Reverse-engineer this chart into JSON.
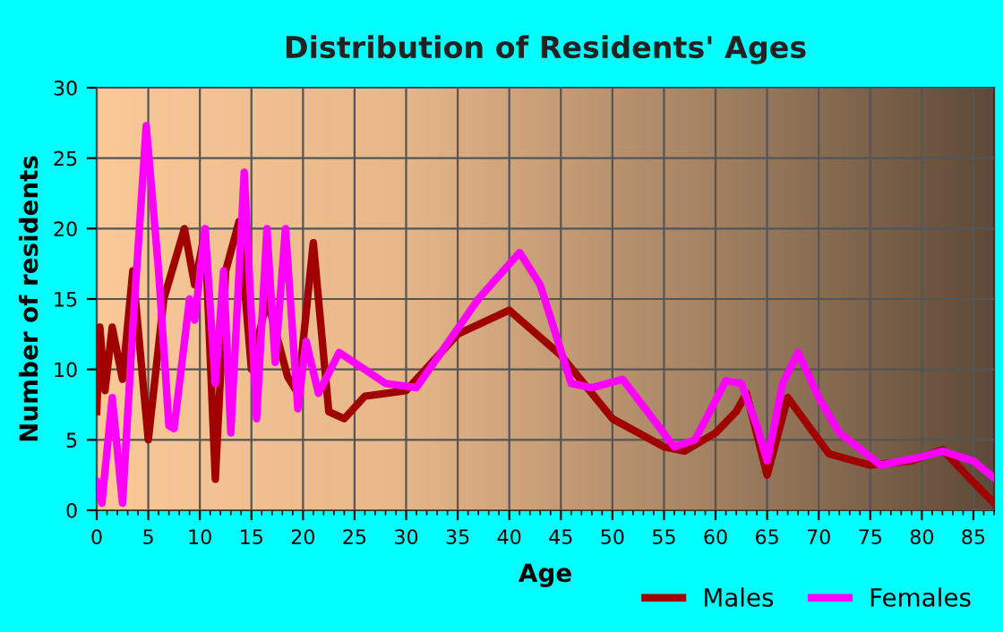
{
  "chart_data": {
    "type": "line",
    "title": "Distribution of Residents' Ages",
    "xlabel": "Age",
    "ylabel": "Number of residents",
    "xlim": [
      0,
      87
    ],
    "xticks": [
      0,
      5,
      10,
      15,
      20,
      25,
      30,
      35,
      40,
      45,
      50,
      55,
      60,
      65,
      70,
      75,
      80,
      85
    ],
    "ylim": [
      0,
      30
    ],
    "yticks": [
      0,
      5,
      10,
      15,
      20,
      25,
      30
    ],
    "grid": true,
    "legend": "bottom right",
    "line_style": "solid",
    "marker": "none",
    "series": [
      {
        "name": "Males",
        "color": "#a00000",
        "x": [
          0,
          0.3,
          0.8,
          1.5,
          2.5,
          3.5,
          5,
          6.5,
          8.5,
          9.5,
          10.5,
          11.5,
          12.5,
          13.8,
          15,
          16.5,
          18.5,
          19.5,
          21,
          22.5,
          24,
          26,
          30,
          35,
          40,
          45,
          50,
          55,
          57,
          60,
          62,
          63,
          65,
          67,
          69,
          71,
          75,
          79,
          82,
          85,
          87
        ],
        "values": [
          7,
          13,
          8.5,
          13,
          9.3,
          17,
          5,
          15,
          20,
          16,
          19.8,
          2.2,
          17,
          20.5,
          10,
          15,
          9.5,
          8.3,
          19,
          7,
          6.5,
          8.1,
          8.5,
          12.5,
          14.2,
          11,
          6.5,
          4.5,
          4.2,
          5.5,
          7,
          8.3,
          2.5,
          8,
          6,
          4,
          3.2,
          3.5,
          4.3,
          2,
          0.5
        ]
      },
      {
        "name": "Females",
        "color": "#ff00ff",
        "x": [
          0,
          0.5,
          1.5,
          2.5,
          3.5,
          4.8,
          6,
          7,
          7.5,
          9,
          9.5,
          10.5,
          11.5,
          12.3,
          13,
          14.3,
          15.5,
          16.5,
          17.3,
          18.3,
          19.5,
          20.3,
          21.5,
          23.5,
          26,
          28,
          31,
          37,
          41,
          43,
          46,
          48,
          51,
          56,
          58,
          61,
          62.5,
          64,
          65,
          66.5,
          68,
          70,
          72,
          76,
          80,
          82,
          85,
          87
        ],
        "values": [
          2,
          0.5,
          8,
          0.5,
          13,
          27.3,
          17,
          6,
          5.8,
          15,
          13.5,
          20,
          9,
          17,
          5.5,
          24,
          6.5,
          20,
          10.5,
          20,
          7.2,
          12,
          8.3,
          11.2,
          10,
          9,
          8.7,
          15,
          18.3,
          16,
          9,
          8.7,
          9.3,
          4.5,
          5,
          9.2,
          9,
          6,
          3.5,
          9,
          11.2,
          8,
          5.5,
          3.2,
          3.8,
          4.2,
          3.5,
          2.3
        ]
      }
    ]
  }
}
